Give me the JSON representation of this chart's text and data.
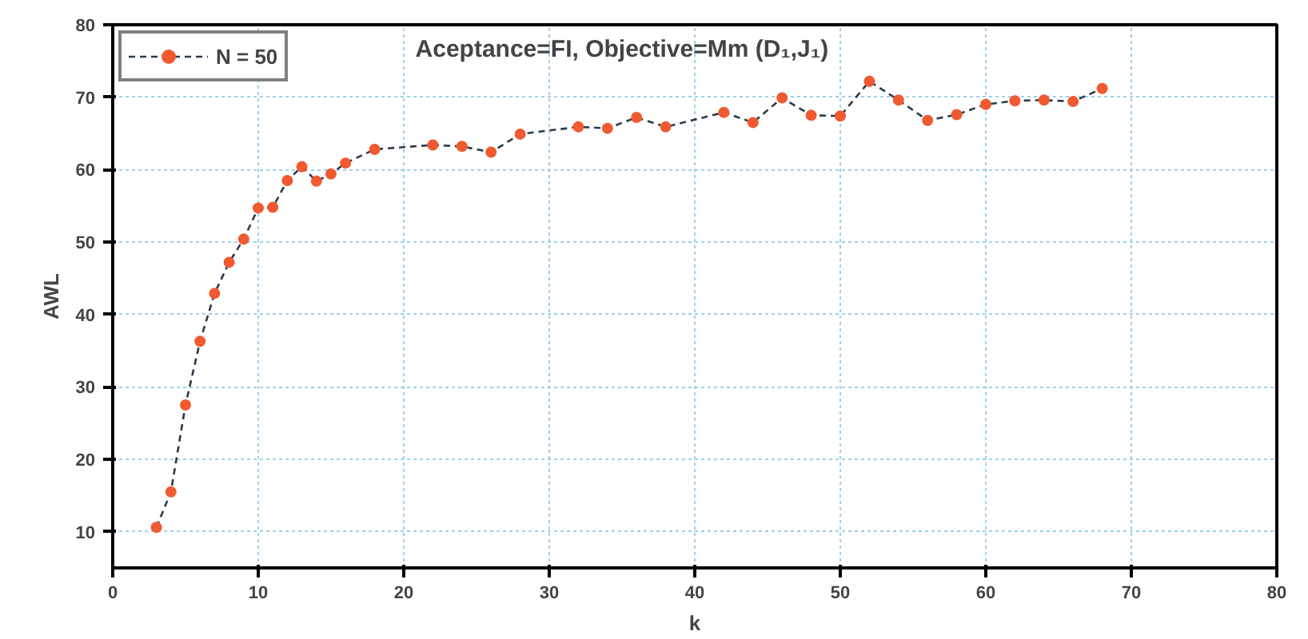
{
  "chart_data": {
    "type": "line",
    "title": "Aceptance=FI, Objective=Mm (D₁,J₁)",
    "xlabel": "k",
    "ylabel": "AWL",
    "x": [
      3,
      4,
      5,
      6,
      7,
      8,
      9,
      10,
      11,
      12,
      13,
      14,
      15,
      16,
      18,
      22,
      24,
      26,
      28,
      32,
      34,
      36,
      38,
      42,
      44,
      46,
      48,
      50,
      52,
      54,
      56,
      58,
      60,
      62,
      64,
      66,
      68
    ],
    "series": [
      {
        "name": "N = 50",
        "color": "#f05a30",
        "values": [
          10.6,
          15.5,
          27.5,
          36.3,
          42.9,
          47.2,
          50.4,
          54.7,
          54.8,
          58.5,
          60.4,
          58.4,
          59.4,
          60.9,
          62.8,
          63.4,
          63.2,
          62.4,
          64.9,
          65.9,
          65.7,
          67.2,
          65.9,
          67.9,
          66.5,
          69.9,
          67.5,
          67.4,
          72.2,
          69.6,
          66.8,
          67.6,
          69.0,
          69.5,
          69.6,
          69.4,
          71.2
        ]
      }
    ],
    "xlim": [
      0,
      80
    ],
    "ylim": [
      5,
      80
    ],
    "xticks": [
      0,
      10,
      20,
      30,
      40,
      50,
      60,
      70,
      80
    ],
    "yticks": [
      10,
      20,
      30,
      40,
      50,
      60,
      70,
      80
    ],
    "grid": true,
    "legend": "top left",
    "marker": "circle",
    "line_style": "dashed"
  }
}
